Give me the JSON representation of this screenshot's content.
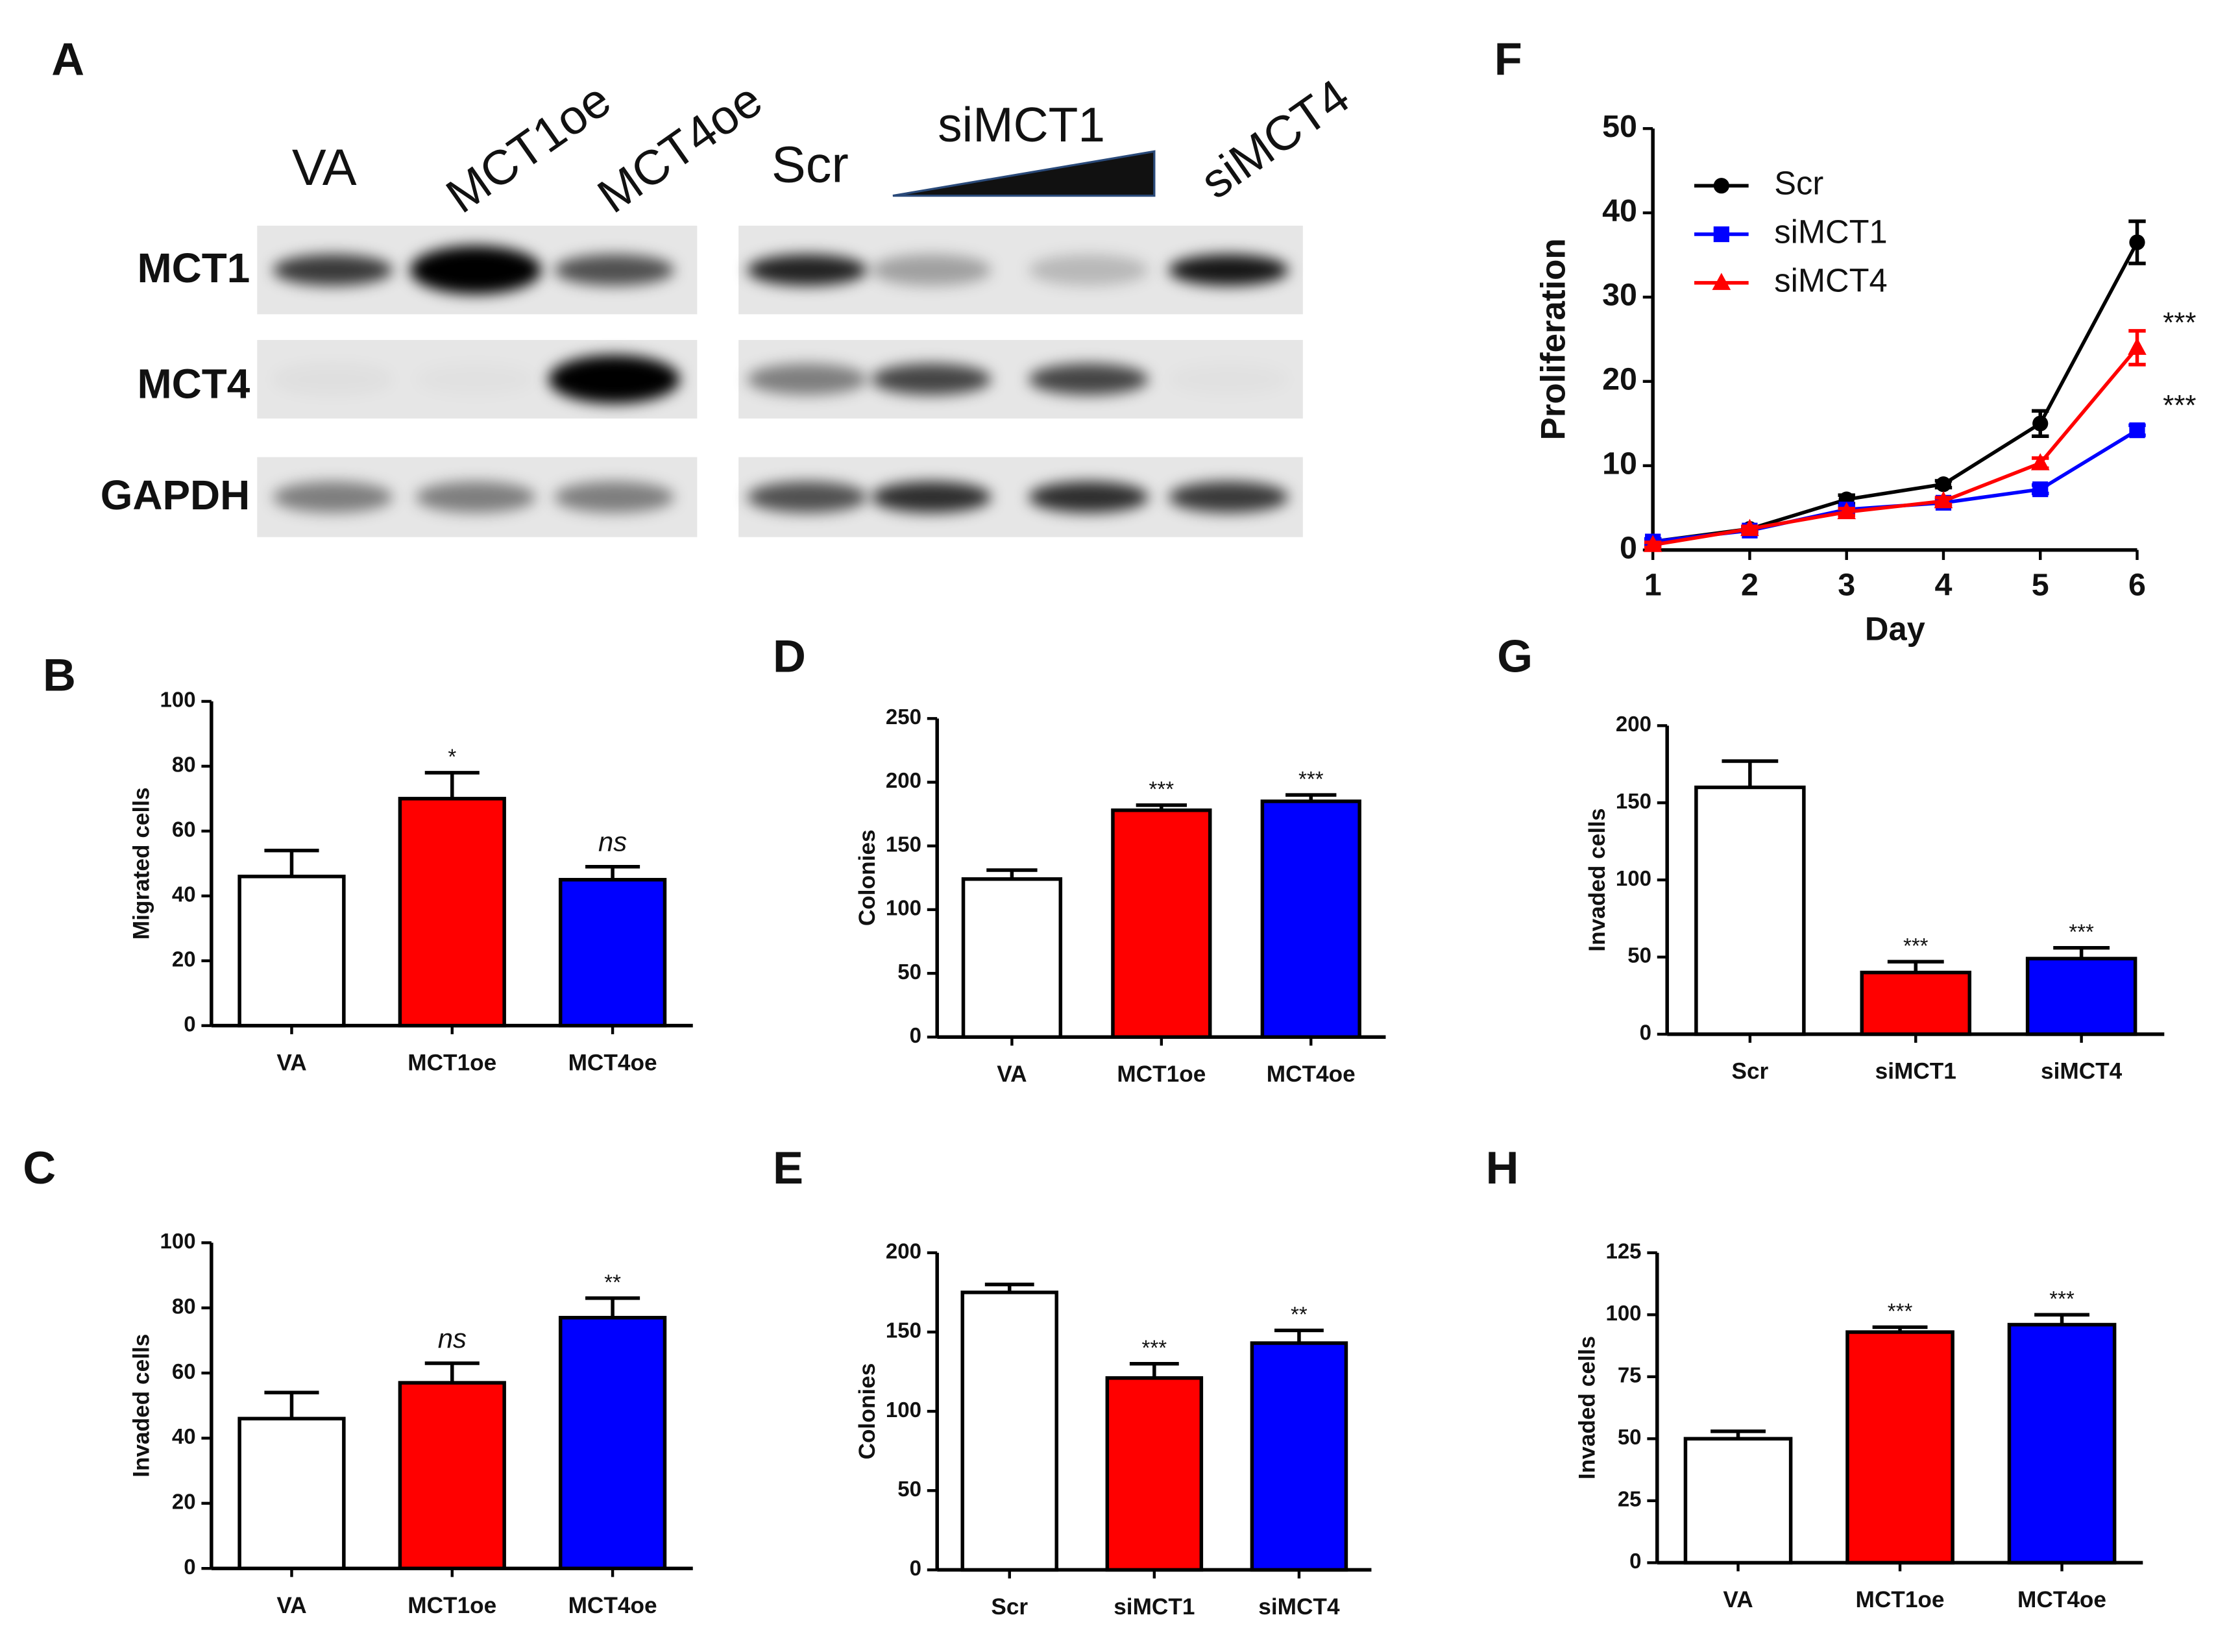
{
  "blot": {
    "label": "A",
    "lanes_left": [
      "VA",
      "MCT1oe",
      "MCT4oe"
    ],
    "lanes_right": [
      "Scr",
      "siMCT1",
      "siMCT4"
    ],
    "rows": [
      "MCT1",
      "MCT4",
      "GAPDH"
    ]
  },
  "chart_data": [
    {
      "type": "bar",
      "label": "B",
      "ylabel": "Migrated cells",
      "categories": [
        "VA",
        "MCT1oe",
        "MCT4oe"
      ],
      "values": [
        46,
        70,
        45
      ],
      "errors": [
        8,
        8,
        4
      ],
      "significance": [
        null,
        "*",
        "ns"
      ],
      "colors": [
        "#ffffff",
        "#ff0000",
        "#0000ff"
      ],
      "ylim": [
        0,
        100
      ],
      "yticks": [
        0,
        20,
        40,
        60,
        80,
        100
      ]
    },
    {
      "type": "bar",
      "label": "C",
      "ylabel": "Invaded cells",
      "categories": [
        "VA",
        "MCT1oe",
        "MCT4oe"
      ],
      "values": [
        46,
        57,
        77
      ],
      "errors": [
        8,
        6,
        6
      ],
      "significance": [
        null,
        "ns",
        "**"
      ],
      "colors": [
        "#ffffff",
        "#ff0000",
        "#0000ff"
      ],
      "ylim": [
        0,
        100
      ],
      "yticks": [
        0,
        20,
        40,
        60,
        80,
        100
      ]
    },
    {
      "type": "bar",
      "label": "D",
      "ylabel": "Colonies",
      "categories": [
        "VA",
        "MCT1oe",
        "MCT4oe"
      ],
      "values": [
        124,
        178,
        185
      ],
      "errors": [
        7,
        4,
        5
      ],
      "significance": [
        null,
        "***",
        "***"
      ],
      "colors": [
        "#ffffff",
        "#ff0000",
        "#0000ff"
      ],
      "ylim": [
        0,
        250
      ],
      "yticks": [
        0,
        50,
        100,
        150,
        200,
        250
      ]
    },
    {
      "type": "bar",
      "label": "E",
      "ylabel": "Colonies",
      "categories": [
        "Scr",
        "siMCT1",
        "siMCT4"
      ],
      "values": [
        175,
        121,
        143
      ],
      "errors": [
        5,
        9,
        8
      ],
      "significance": [
        null,
        "***",
        "**"
      ],
      "colors": [
        "#ffffff",
        "#ff0000",
        "#0000ff"
      ],
      "ylim": [
        0,
        200
      ],
      "yticks": [
        0,
        50,
        100,
        150,
        200
      ]
    },
    {
      "type": "line",
      "label": "F",
      "xlabel": "Day",
      "ylabel": "Proliferation",
      "x": [
        1,
        2,
        3,
        4,
        5,
        6
      ],
      "xlim": [
        1,
        6
      ],
      "xticks": [
        1,
        2,
        3,
        4,
        5,
        6
      ],
      "ylim": [
        0,
        50
      ],
      "yticks": [
        0,
        10,
        20,
        30,
        40,
        50
      ],
      "series": [
        {
          "name": "Scr",
          "color": "#000000",
          "marker": "circle",
          "values": [
            1,
            2.5,
            6,
            7.8,
            15,
            36.5
          ],
          "errors": [
            0.3,
            0.3,
            0.5,
            0.4,
            1.5,
            2.5
          ]
        },
        {
          "name": "siMCT1",
          "color": "#0000ff",
          "marker": "square",
          "values": [
            1,
            2.3,
            4.8,
            5.6,
            7.2,
            14.2
          ],
          "errors": [
            0.3,
            0.3,
            0.4,
            0.4,
            0.5,
            0.6
          ],
          "significance": "***"
        },
        {
          "name": "siMCT4",
          "color": "#ff0000",
          "marker": "triangle",
          "values": [
            0.6,
            2.5,
            4.5,
            5.8,
            10.3,
            24
          ],
          "errors": [
            0.3,
            0.3,
            0.4,
            0.4,
            0.6,
            2
          ],
          "significance": "***"
        }
      ]
    },
    {
      "type": "bar",
      "label": "G",
      "ylabel": "Invaded cells",
      "categories": [
        "Scr",
        "siMCT1",
        "siMCT4"
      ],
      "values": [
        160,
        40,
        49
      ],
      "errors": [
        17,
        7,
        7
      ],
      "significance": [
        null,
        "***",
        "***"
      ],
      "colors": [
        "#ffffff",
        "#ff0000",
        "#0000ff"
      ],
      "ylim": [
        0,
        200
      ],
      "yticks": [
        0,
        50,
        100,
        150,
        200
      ]
    },
    {
      "type": "bar",
      "label": "H",
      "ylabel": "Invaded cells",
      "categories": [
        "VA",
        "MCT1oe",
        "MCT4oe"
      ],
      "values": [
        50,
        93,
        96
      ],
      "errors": [
        3,
        2,
        4
      ],
      "significance": [
        null,
        "***",
        "***"
      ],
      "colors": [
        "#ffffff",
        "#ff0000",
        "#0000ff"
      ],
      "ylim": [
        0,
        125
      ],
      "yticks": [
        0,
        25,
        50,
        75,
        100,
        125
      ]
    }
  ]
}
